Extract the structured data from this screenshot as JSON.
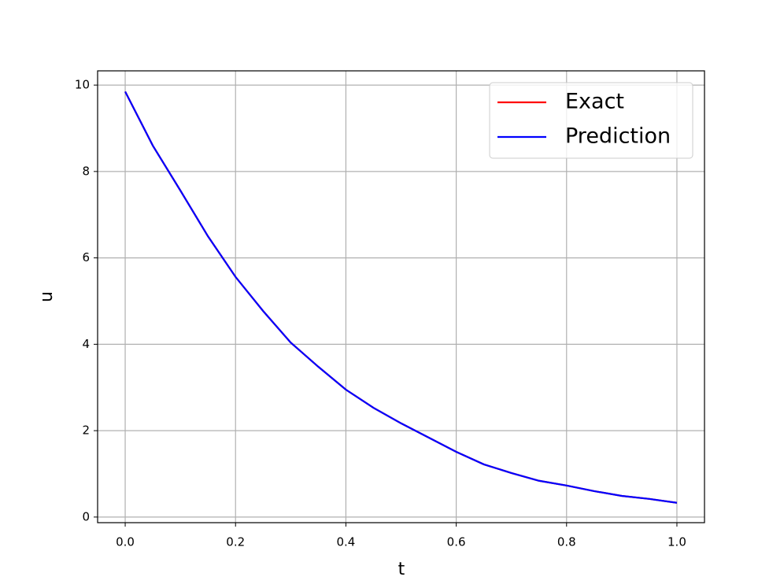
{
  "chart_data": {
    "type": "line",
    "xlabel": "t",
    "ylabel": "u",
    "x": [
      0,
      0.05,
      0.1,
      0.15,
      0.2,
      0.25,
      0.3,
      0.35,
      0.4,
      0.45,
      0.5,
      0.55,
      0.6,
      0.65,
      0.7,
      0.75,
      0.8,
      0.85,
      0.9,
      0.95,
      1.0
    ],
    "series": [
      {
        "name": "Exact",
        "color": "#ff0000",
        "values": [
          9.85,
          8.6,
          7.56,
          6.5,
          5.56,
          4.77,
          4.04,
          3.48,
          2.95,
          2.53,
          2.17,
          1.84,
          1.51,
          1.22,
          1.02,
          0.84,
          0.73,
          0.6,
          0.49,
          0.42,
          0.33
        ]
      },
      {
        "name": "Prediction",
        "color": "#0000ff",
        "values": [
          9.85,
          8.6,
          7.56,
          6.5,
          5.56,
          4.77,
          4.04,
          3.48,
          2.95,
          2.53,
          2.17,
          1.84,
          1.51,
          1.22,
          1.02,
          0.84,
          0.73,
          0.6,
          0.49,
          0.42,
          0.33
        ]
      }
    ],
    "xlim": [
      -0.05,
      1.05
    ],
    "xticks": [
      {
        "value": 0,
        "label": "0.0"
      },
      0.2,
      0.4,
      0.6,
      0.8,
      {
        "value": 1,
        "label": "1.0"
      }
    ],
    "ylim": [
      -0.13,
      10.33
    ],
    "yticks": [
      0,
      2,
      4,
      6,
      8,
      10
    ],
    "grid": true,
    "legend": "upper right"
  }
}
